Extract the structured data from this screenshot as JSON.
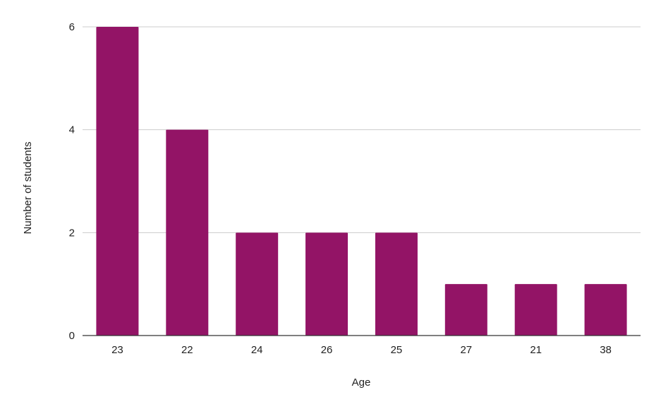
{
  "chart_data": {
    "type": "bar",
    "title": "",
    "xlabel": "Age",
    "ylabel": "Number of students",
    "categories": [
      "23",
      "22",
      "24",
      "26",
      "25",
      "27",
      "21",
      "38"
    ],
    "values": [
      6,
      4,
      2,
      2,
      2,
      1,
      1,
      1
    ],
    "ylim": [
      0,
      6
    ],
    "yticks": [
      "0",
      "2",
      "4",
      "6"
    ],
    "grid": true,
    "legend": "none",
    "colors": {
      "bar": "#931466",
      "grid": "#cccccc",
      "axis": "#333333"
    }
  }
}
